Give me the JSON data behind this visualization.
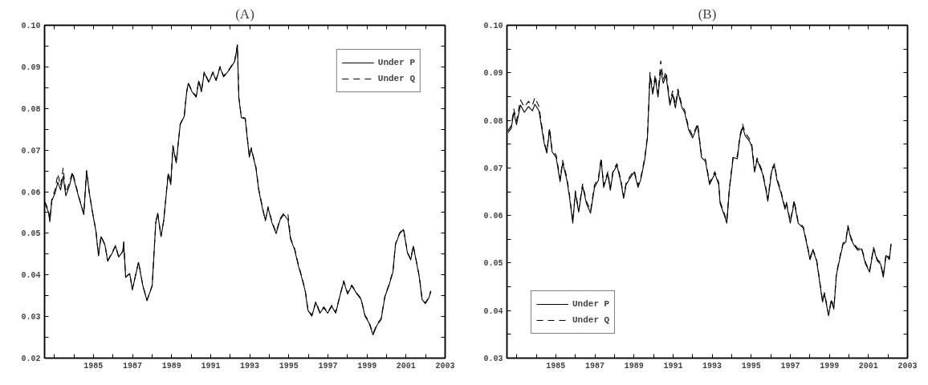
{
  "chart_data": [
    {
      "type": "line",
      "title": "(A)",
      "legend": "top right",
      "grid": false,
      "x": [
        1982.53,
        1982.7,
        1982.77,
        1982.87,
        1983.04,
        1983.18,
        1983.32,
        1983.45,
        1983.59,
        1983.77,
        1983.93,
        1984.06,
        1984.23,
        1984.51,
        1984.65,
        1984.79,
        1984.95,
        1985.13,
        1985.26,
        1985.39,
        1985.59,
        1985.73,
        1985.97,
        1986.13,
        1986.29,
        1986.51,
        1986.55,
        1986.65,
        1986.86,
        1986.99,
        1987.31,
        1987.53,
        1987.74,
        1988.01,
        1988.19,
        1988.29,
        1988.46,
        1988.6,
        1988.83,
        1988.96,
        1989.07,
        1989.24,
        1989.44,
        1989.65,
        1989.76,
        1989.85,
        1990.05,
        1990.26,
        1990.39,
        1990.53,
        1990.67,
        1990.9,
        1991.12,
        1991.28,
        1991.48,
        1991.66,
        1991.96,
        1992.23,
        1992.37,
        1992.44,
        1992.57,
        1992.77,
        1992.98,
        1993.08,
        1993.32,
        1993.46,
        1993.66,
        1993.8,
        1993.94,
        1994.14,
        1994.35,
        1994.55,
        1994.75,
        1994.96,
        1995.09,
        1995.3,
        1995.5,
        1995.66,
        1995.84,
        1995.98,
        1996.18,
        1996.38,
        1996.59,
        1996.79,
        1996.99,
        1997.2,
        1997.4,
        1997.61,
        1997.81,
        1998.01,
        1998.22,
        1998.49,
        1998.7,
        1998.9,
        1999.1,
        1999.31,
        1999.51,
        1999.72,
        1999.92,
        2000.12,
        2000.33,
        2000.46,
        2000.67,
        2000.87,
        2001.07,
        2001.24,
        2001.37,
        2001.55,
        2001.68,
        2001.82,
        2001.99,
        2002.16,
        2002.27
      ],
      "series": [
        {
          "name": "Under P",
          "color": "#000000",
          "line_style": "solid",
          "values": [
            0.0571,
            0.0551,
            0.0528,
            0.0578,
            0.0597,
            0.0623,
            0.0604,
            0.0637,
            0.059,
            0.0614,
            0.0643,
            0.062,
            0.059,
            0.0545,
            0.065,
            0.0597,
            0.0551,
            0.0505,
            0.0446,
            0.0492,
            0.0472,
            0.0433,
            0.0453,
            0.0469,
            0.0443,
            0.0456,
            0.0479,
            0.0394,
            0.0403,
            0.0364,
            0.043,
            0.0374,
            0.0338,
            0.0374,
            0.0525,
            0.0548,
            0.0492,
            0.0531,
            0.0643,
            0.0617,
            0.0709,
            0.0669,
            0.0761,
            0.0781,
            0.0834,
            0.086,
            0.084,
            0.0827,
            0.0866,
            0.084,
            0.0886,
            0.0863,
            0.0886,
            0.0867,
            0.0899,
            0.0876,
            0.0893,
            0.0913,
            0.0952,
            0.0827,
            0.0778,
            0.0775,
            0.0683,
            0.0703,
            0.0656,
            0.0604,
            0.0558,
            0.0532,
            0.0561,
            0.0525,
            0.0499,
            0.0532,
            0.0545,
            0.0532,
            0.0486,
            0.046,
            0.042,
            0.0394,
            0.0361,
            0.0315,
            0.0301,
            0.0334,
            0.0308,
            0.0321,
            0.0308,
            0.0325,
            0.0308,
            0.0348,
            0.0384,
            0.0354,
            0.0374,
            0.0354,
            0.0341,
            0.0301,
            0.0285,
            0.0256,
            0.0279,
            0.0292,
            0.0348,
            0.0374,
            0.0407,
            0.0473,
            0.0499,
            0.0509,
            0.0453,
            0.0436,
            0.0469,
            0.0426,
            0.0394,
            0.0341,
            0.0331,
            0.0344,
            0.036
          ]
        },
        {
          "name": "Under Q",
          "color": "#000000",
          "line_style": "dashed",
          "values": [
            0.0575,
            0.0555,
            0.0532,
            0.0582,
            0.0605,
            0.0643,
            0.0614,
            0.0657,
            0.0598,
            0.0622,
            0.0648,
            0.0624,
            0.0592,
            0.0547,
            0.0651,
            0.0598,
            0.0552,
            0.0506,
            0.0447,
            0.0493,
            0.0473,
            0.0435,
            0.0455,
            0.0471,
            0.0445,
            0.0458,
            0.048,
            0.0395,
            0.0404,
            0.0365,
            0.0431,
            0.0375,
            0.0339,
            0.0375,
            0.0526,
            0.0549,
            0.0493,
            0.0532,
            0.0646,
            0.062,
            0.0711,
            0.067,
            0.0763,
            0.0783,
            0.0836,
            0.0862,
            0.0842,
            0.0829,
            0.0868,
            0.0842,
            0.0888,
            0.0865,
            0.0888,
            0.0869,
            0.0901,
            0.0878,
            0.0895,
            0.0915,
            0.0953,
            0.0829,
            0.078,
            0.0777,
            0.0686,
            0.0706,
            0.0659,
            0.0607,
            0.0561,
            0.053,
            0.0564,
            0.0528,
            0.0502,
            0.0535,
            0.0549,
            0.0545,
            0.0489,
            0.0463,
            0.0423,
            0.0397,
            0.0363,
            0.0317,
            0.0303,
            0.0336,
            0.031,
            0.0323,
            0.031,
            0.0327,
            0.031,
            0.035,
            0.0386,
            0.0356,
            0.0376,
            0.0356,
            0.0343,
            0.0303,
            0.0288,
            0.0259,
            0.0282,
            0.0295,
            0.035,
            0.0376,
            0.0409,
            0.0475,
            0.0501,
            0.0511,
            0.0455,
            0.0438,
            0.0471,
            0.0428,
            0.0396,
            0.0343,
            0.0333,
            0.0346,
            0.0362
          ]
        }
      ],
      "xlim": [
        1982.5,
        2003
      ],
      "xticks": [
        {
          "value": 1983,
          "label": null
        },
        {
          "value": 1984,
          "label": null
        },
        1985,
        {
          "value": 1986,
          "label": null
        },
        1987,
        {
          "value": 1988,
          "label": null
        },
        1989,
        {
          "value": 1990,
          "label": null
        },
        1991,
        {
          "value": 1992,
          "label": null
        },
        1993,
        {
          "value": 1994,
          "label": null
        },
        1995,
        {
          "value": 1996,
          "label": null
        },
        1997,
        {
          "value": 1998,
          "label": null
        },
        1999,
        {
          "value": 2000,
          "label": null
        },
        2001,
        {
          "value": 2002,
          "label": null
        },
        2003
      ],
      "ylim": [
        0.02,
        0.1
      ],
      "yticks": [
        0.02,
        {
          "value": 0.025,
          "label": null
        },
        0.03,
        {
          "value": 0.035,
          "label": null
        },
        0.04,
        {
          "value": 0.045,
          "label": null
        },
        0.05,
        {
          "value": 0.055,
          "label": null
        },
        0.06,
        {
          "value": 0.065,
          "label": null
        },
        0.07,
        {
          "value": 0.075,
          "label": null
        },
        0.08,
        {
          "value": 0.085,
          "label": null
        },
        0.09,
        {
          "value": 0.095,
          "label": null
        },
        {
          "value": 0.1,
          "label": "0.10"
        }
      ]
    },
    {
      "type": "line",
      "title": "(B)",
      "legend": "bottom left",
      "grid": false,
      "x": [
        1982.55,
        1982.72,
        1982.85,
        1982.99,
        1983.19,
        1983.39,
        1983.6,
        1983.8,
        1983.93,
        1984.14,
        1984.27,
        1984.41,
        1984.54,
        1984.68,
        1984.81,
        1985.02,
        1985.22,
        1985.35,
        1985.56,
        1985.69,
        1985.87,
        1986.0,
        1986.17,
        1986.37,
        1986.57,
        1986.78,
        1986.98,
        1987.18,
        1987.32,
        1987.45,
        1987.66,
        1987.79,
        1987.93,
        1988.13,
        1988.33,
        1988.47,
        1988.6,
        1988.81,
        1989.01,
        1989.21,
        1989.35,
        1989.55,
        1989.69,
        1989.82,
        1989.96,
        1990.09,
        1990.23,
        1990.37,
        1990.5,
        1990.64,
        1990.84,
        1990.98,
        1991.12,
        1991.25,
        1991.46,
        1991.59,
        1991.8,
        1992.0,
        1992.26,
        1992.46,
        1992.66,
        1992.87,
        1993.14,
        1993.34,
        1993.41,
        1993.61,
        1993.75,
        1993.88,
        1994.08,
        1994.29,
        1994.42,
        1994.56,
        1994.69,
        1994.9,
        1995.03,
        1995.17,
        1995.3,
        1995.58,
        1995.78,
        1995.85,
        1996.05,
        1996.19,
        1996.32,
        1996.52,
        1996.73,
        1996.8,
        1997.0,
        1997.2,
        1997.4,
        1997.67,
        1997.88,
        1998.01,
        1998.15,
        1998.35,
        1998.49,
        1998.65,
        1998.75,
        1998.96,
        1999.1,
        1999.23,
        1999.36,
        1999.57,
        1999.7,
        1999.84,
        1999.95,
        2000.11,
        2000.24,
        2000.45,
        2000.65,
        2000.85,
        2001.06,
        2001.26,
        2001.46,
        2001.62,
        2001.76,
        2001.9,
        2002.07,
        2002.16
      ],
      "series": [
        {
          "name": "Under P",
          "color": "#000000",
          "line_style": "solid",
          "values": [
            0.0774,
            0.0783,
            0.0817,
            0.0791,
            0.0832,
            0.0817,
            0.0829,
            0.082,
            0.0834,
            0.082,
            0.0786,
            0.0751,
            0.0731,
            0.078,
            0.0734,
            0.0722,
            0.0671,
            0.0711,
            0.0676,
            0.0642,
            0.0584,
            0.0648,
            0.0607,
            0.0662,
            0.0625,
            0.0605,
            0.0659,
            0.0674,
            0.0717,
            0.0659,
            0.0688,
            0.0653,
            0.0691,
            0.0705,
            0.0671,
            0.0636,
            0.0665,
            0.0679,
            0.0691,
            0.0659,
            0.0676,
            0.0717,
            0.0763,
            0.0895,
            0.0855,
            0.0889,
            0.0849,
            0.0906,
            0.0878,
            0.0895,
            0.0832,
            0.0855,
            0.0826,
            0.086,
            0.0826,
            0.0817,
            0.078,
            0.0763,
            0.0789,
            0.0722,
            0.0714,
            0.0665,
            0.0688,
            0.0665,
            0.0625,
            0.0602,
            0.0584,
            0.0653,
            0.0722,
            0.0719,
            0.0763,
            0.0786,
            0.0768,
            0.0757,
            0.0745,
            0.0691,
            0.0717,
            0.0688,
            0.0648,
            0.063,
            0.0694,
            0.0705,
            0.0674,
            0.0648,
            0.0613,
            0.0625,
            0.0584,
            0.0628,
            0.0584,
            0.0573,
            0.0533,
            0.0507,
            0.0527,
            0.0504,
            0.0464,
            0.0418,
            0.0435,
            0.0389,
            0.0421,
            0.0403,
            0.0475,
            0.0516,
            0.0539,
            0.0544,
            0.0576,
            0.055,
            0.0539,
            0.0527,
            0.053,
            0.0498,
            0.0481,
            0.053,
            0.0504,
            0.0498,
            0.047,
            0.0516,
            0.0507,
            0.0539
          ]
        },
        {
          "name": "Under Q",
          "color": "#000000",
          "line_style": "dashed",
          "values": [
            0.0778,
            0.0789,
            0.0824,
            0.0799,
            0.0843,
            0.0828,
            0.084,
            0.0831,
            0.0848,
            0.0829,
            0.0792,
            0.0755,
            0.0735,
            0.0784,
            0.0738,
            0.0727,
            0.0676,
            0.0716,
            0.0681,
            0.0647,
            0.0588,
            0.0652,
            0.0611,
            0.0666,
            0.063,
            0.061,
            0.0664,
            0.0679,
            0.0721,
            0.0663,
            0.0692,
            0.0657,
            0.0695,
            0.0709,
            0.0675,
            0.064,
            0.0669,
            0.0683,
            0.0695,
            0.0663,
            0.068,
            0.0721,
            0.0768,
            0.0901,
            0.0861,
            0.0896,
            0.0856,
            0.0925,
            0.0886,
            0.0903,
            0.0839,
            0.0862,
            0.0832,
            0.0866,
            0.0831,
            0.0822,
            0.0785,
            0.0768,
            0.0793,
            0.0726,
            0.0718,
            0.0669,
            0.0692,
            0.0669,
            0.0629,
            0.0606,
            0.0588,
            0.0657,
            0.0726,
            0.0724,
            0.0768,
            0.0792,
            0.0774,
            0.0762,
            0.075,
            0.0696,
            0.0721,
            0.0692,
            0.0652,
            0.0634,
            0.0698,
            0.0709,
            0.0678,
            0.0652,
            0.0617,
            0.0629,
            0.0588,
            0.0632,
            0.0588,
            0.0576,
            0.0536,
            0.051,
            0.053,
            0.0507,
            0.0467,
            0.0421,
            0.0438,
            0.0392,
            0.0424,
            0.0406,
            0.0478,
            0.0519,
            0.0542,
            0.0547,
            0.0579,
            0.0553,
            0.0542,
            0.053,
            0.0533,
            0.0501,
            0.0484,
            0.0533,
            0.0507,
            0.0501,
            0.0473,
            0.0519,
            0.051,
            0.0542
          ]
        }
      ],
      "xlim": [
        1982.5,
        2003
      ],
      "xticks": [
        {
          "value": 1983,
          "label": null
        },
        {
          "value": 1984,
          "label": null
        },
        1985,
        {
          "value": 1986,
          "label": null
        },
        1987,
        {
          "value": 1988,
          "label": null
        },
        1989,
        {
          "value": 1990,
          "label": null
        },
        1991,
        {
          "value": 1992,
          "label": null
        },
        1993,
        {
          "value": 1994,
          "label": null
        },
        1995,
        {
          "value": 1996,
          "label": null
        },
        1997,
        {
          "value": 1998,
          "label": null
        },
        1999,
        {
          "value": 2000,
          "label": null
        },
        2001,
        {
          "value": 2002,
          "label": null
        },
        2003
      ],
      "ylim": [
        0.03,
        0.1
      ],
      "yticks": [
        0.03,
        {
          "value": 0.035,
          "label": null
        },
        0.04,
        {
          "value": 0.045,
          "label": null
        },
        0.05,
        {
          "value": 0.055,
          "label": null
        },
        0.06,
        {
          "value": 0.065,
          "label": null
        },
        0.07,
        {
          "value": 0.075,
          "label": null
        },
        0.08,
        {
          "value": 0.085,
          "label": null
        },
        0.09,
        {
          "value": 0.095,
          "label": null
        },
        {
          "value": 0.1,
          "label": "0.10"
        }
      ]
    }
  ]
}
